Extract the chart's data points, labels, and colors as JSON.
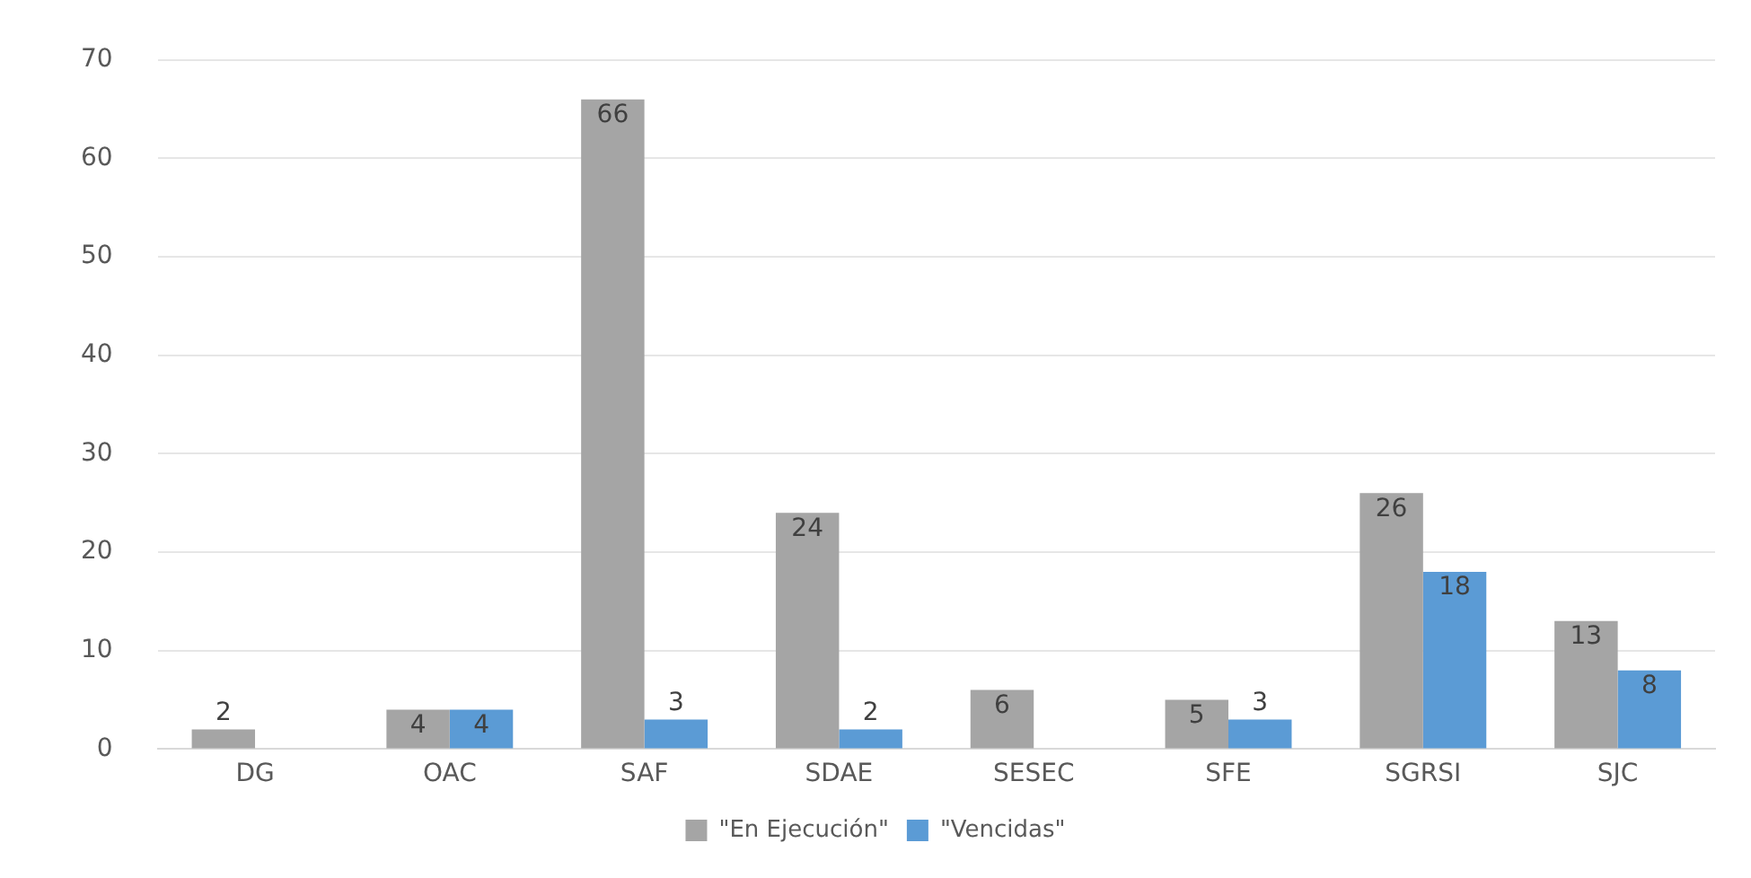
{
  "chart_data": {
    "type": "bar",
    "categories": [
      "DG",
      "OAC",
      "SAF",
      "SDAE",
      "SESEC",
      "SFE",
      "SGRSI",
      "SJC"
    ],
    "series": [
      {
        "name": "\"En Ejecución\"",
        "color": "#a5a5a5",
        "values": [
          2,
          4,
          66,
          24,
          6,
          5,
          26,
          13
        ]
      },
      {
        "name": "\"Vencidas\"",
        "color": "#5b9bd5",
        "values": [
          null,
          4,
          3,
          2,
          null,
          3,
          18,
          8
        ]
      }
    ],
    "ylim": [
      0,
      70
    ],
    "yticks": [
      0,
      10,
      20,
      30,
      40,
      50,
      60,
      70
    ],
    "grid": "y",
    "legend": "bottom",
    "data_labels": true
  }
}
